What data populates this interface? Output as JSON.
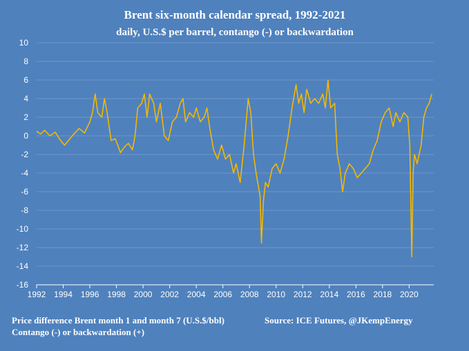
{
  "chart_data": {
    "type": "line",
    "title": "Brent six-month calendar spread, 1992-2021",
    "subtitle": "daily, U.S.$ per barrel, contango (-) or backwardation",
    "xlabel": "",
    "ylabel": "",
    "xlim": [
      1992,
      2021.85
    ],
    "ylim": [
      -16,
      10
    ],
    "y_ticks": [
      10,
      8,
      6,
      4,
      2,
      0,
      -2,
      -4,
      -6,
      -8,
      -10,
      -12,
      -14,
      -16
    ],
    "x_ticks": [
      "1992",
      "1994",
      "1996",
      "1998",
      "2000",
      "2002",
      "2004",
      "2006",
      "2008",
      "2010",
      "2012",
      "2014",
      "2016",
      "2018",
      "2020"
    ],
    "grid": "horizontal",
    "series": [
      {
        "color": "#f5b800",
        "x": [
          1992.0,
          1992.3,
          1992.6,
          1993.0,
          1993.4,
          1993.8,
          1994.1,
          1994.4,
          1994.8,
          1995.2,
          1995.6,
          1996.0,
          1996.2,
          1996.4,
          1996.6,
          1996.9,
          1997.1,
          1997.3,
          1997.6,
          1997.9,
          1998.1,
          1998.3,
          1998.6,
          1998.9,
          1999.2,
          1999.4,
          1999.6,
          1999.9,
          2000.1,
          2000.3,
          2000.5,
          2000.8,
          2001.0,
          2001.3,
          2001.6,
          2001.9,
          2002.2,
          2002.5,
          2002.8,
          2003.0,
          2003.2,
          2003.5,
          2003.8,
          2004.0,
          2004.3,
          2004.6,
          2004.8,
          2005.0,
          2005.3,
          2005.6,
          2005.9,
          2006.2,
          2006.5,
          2006.8,
          2007.0,
          2007.3,
          2007.6,
          2007.9,
          2008.1,
          2008.3,
          2008.5,
          2008.8,
          2008.9,
          2009.05,
          2009.2,
          2009.4,
          2009.7,
          2010.0,
          2010.3,
          2010.6,
          2010.9,
          2011.2,
          2011.5,
          2011.7,
          2011.9,
          2012.1,
          2012.3,
          2012.6,
          2012.9,
          2013.2,
          2013.5,
          2013.7,
          2013.9,
          2014.1,
          2014.4,
          2014.6,
          2014.8,
          2015.0,
          2015.2,
          2015.5,
          2015.8,
          2016.1,
          2016.4,
          2016.7,
          2017.0,
          2017.3,
          2017.6,
          2017.9,
          2018.2,
          2018.5,
          2018.8,
          2019.0,
          2019.3,
          2019.6,
          2019.9,
          2020.05,
          2020.2,
          2020.3,
          2020.4,
          2020.6,
          2020.9,
          2021.1,
          2021.3,
          2021.5,
          2021.7
        ],
        "y": [
          0.5,
          0.2,
          0.6,
          0.0,
          0.4,
          -0.5,
          -1.0,
          -0.5,
          0.2,
          0.8,
          0.3,
          1.5,
          2.5,
          4.5,
          2.5,
          2.0,
          4.0,
          2.5,
          -0.5,
          -0.3,
          -1.0,
          -1.8,
          -1.2,
          -0.8,
          -1.5,
          0.0,
          3.0,
          3.5,
          4.5,
          2.0,
          4.5,
          3.5,
          1.5,
          3.5,
          0.0,
          -0.5,
          1.5,
          2.0,
          3.5,
          4.0,
          1.5,
          2.5,
          2.0,
          3.0,
          1.5,
          2.0,
          3.0,
          1.0,
          -1.5,
          -2.5,
          -1.0,
          -2.5,
          -2.0,
          -4.0,
          -3.0,
          -5.0,
          -1.0,
          4.0,
          2.5,
          -2.0,
          -4.0,
          -6.5,
          -11.5,
          -7.0,
          -5.0,
          -5.5,
          -3.5,
          -3.0,
          -4.0,
          -2.5,
          0.0,
          3.0,
          5.5,
          3.5,
          4.5,
          2.5,
          5.0,
          3.5,
          4.0,
          3.5,
          4.5,
          3.0,
          6.0,
          3.0,
          3.5,
          -2.0,
          -3.5,
          -6.0,
          -4.0,
          -3.0,
          -3.5,
          -4.5,
          -4.0,
          -3.5,
          -3.0,
          -1.5,
          -0.5,
          1.5,
          2.5,
          3.0,
          1.0,
          2.5,
          1.5,
          2.5,
          2.0,
          -1.0,
          -13.0,
          -4.0,
          -2.0,
          -3.0,
          -1.0,
          2.0,
          3.0,
          3.5,
          4.5
        ]
      }
    ]
  },
  "footer": {
    "left_line1": "Price difference Brent month  1 and month 7 (U.S.$/bbl)",
    "left_line2": "Contango (-) or backwardation (+)",
    "source": "Source:  ICE Futures, @JKempEnergy"
  }
}
